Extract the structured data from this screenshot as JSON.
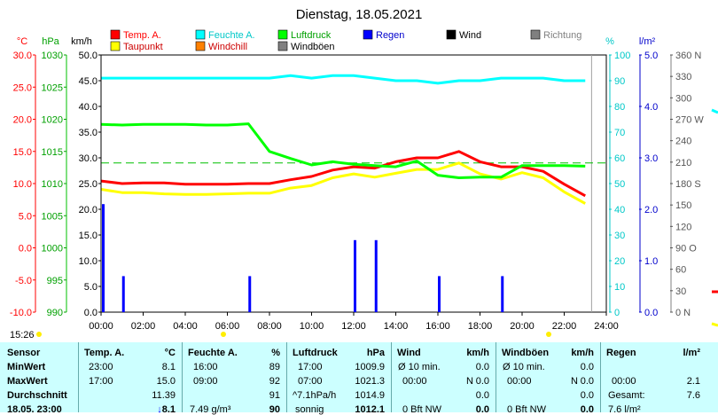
{
  "chart_data": {
    "type": "line",
    "title": "Dienstag, 18.05.2021",
    "x_ticks": [
      "00:00",
      "02:00",
      "04:00",
      "06:00",
      "08:00",
      "10:00",
      "12:00",
      "14:00",
      "16:00",
      "18:00",
      "20:00",
      "22:00",
      "24:00"
    ],
    "axes": {
      "temp": {
        "unit": "°C",
        "ticks": [
          "30.0",
          "25.0",
          "20.0",
          "15.0",
          "10.0",
          "5.0",
          "0.0",
          "-5.0",
          "-10.0"
        ],
        "range": [
          -10,
          30
        ]
      },
      "pressure": {
        "unit": "hPa",
        "ticks": [
          "1030",
          "1025",
          "1020",
          "1015",
          "1010",
          "1005",
          "1000",
          "995",
          "990"
        ],
        "range": [
          990,
          1030
        ]
      },
      "wind": {
        "unit": "km/h",
        "ticks": [
          "50.0",
          "45.0",
          "40.0",
          "35.0",
          "30.0",
          "25.0",
          "20.0",
          "15.0",
          "10.0",
          "5.0",
          "0.0"
        ],
        "range": [
          0,
          50
        ]
      },
      "humidity": {
        "unit": "%",
        "ticks": [
          "100",
          "90",
          "80",
          "70",
          "60",
          "50",
          "40",
          "30",
          "20",
          "10",
          "0"
        ],
        "range": [
          0,
          100
        ]
      },
      "rain": {
        "unit": "l/m²",
        "ticks": [
          "5.0",
          "4.0",
          "3.0",
          "2.0",
          "1.0",
          "0.0"
        ],
        "range": [
          0,
          5
        ]
      },
      "direction": {
        "ticks": [
          "360 N",
          "330",
          "300",
          "270 W",
          "240",
          "210",
          "180 S",
          "150",
          "120",
          "90 O",
          "60",
          "30",
          "0 N"
        ],
        "range": [
          0,
          360
        ]
      }
    },
    "legend": [
      {
        "name": "Temp. A.",
        "color": "#ff0000",
        "label_color": "#ff0000"
      },
      {
        "name": "Feuchte A.",
        "color": "#00ffff",
        "label_color": "#00c8c8"
      },
      {
        "name": "Luftdruck",
        "color": "#00ff00",
        "label_color": "#00a000"
      },
      {
        "name": "Regen",
        "color": "#0000ff",
        "label_color": "#0000cc"
      },
      {
        "name": "Wind",
        "color": "#000000",
        "label_color": "#000000"
      },
      {
        "name": "Richtung",
        "color": "#808080",
        "label_color": "#808080"
      },
      {
        "name": "Taupunkt",
        "color": "#ffff00",
        "label_color": "#cc0000"
      },
      {
        "name": "Windchill",
        "color": "#ff8000",
        "label_color": "#cc0000"
      },
      {
        "name": "Windböen",
        "color": "#808080",
        "label_color": "#000000"
      }
    ],
    "series": [
      {
        "name": "Temp. A.",
        "axis": "temp",
        "color": "#ff0000",
        "x": [
          0,
          1,
          2,
          3,
          4,
          5,
          6,
          7,
          8,
          9,
          10,
          11,
          12,
          13,
          14,
          15,
          16,
          17,
          18,
          19,
          20,
          21,
          22,
          23
        ],
        "values": [
          10.4,
          10.0,
          10.1,
          10.1,
          9.9,
          9.9,
          9.9,
          10.0,
          10.0,
          10.6,
          11.1,
          12.1,
          12.6,
          12.4,
          13.4,
          14.0,
          14.0,
          15.0,
          13.4,
          12.6,
          12.6,
          11.9,
          9.9,
          8.1
        ]
      },
      {
        "name": "Taupunkt",
        "axis": "temp",
        "color": "#ffff00",
        "x": [
          0,
          1,
          2,
          3,
          4,
          5,
          6,
          7,
          8,
          9,
          10,
          11,
          12,
          13,
          14,
          15,
          16,
          17,
          18,
          19,
          20,
          21,
          22,
          23
        ],
        "values": [
          9.1,
          8.6,
          8.6,
          8.4,
          8.3,
          8.3,
          8.4,
          8.5,
          8.5,
          9.3,
          9.7,
          10.9,
          11.5,
          11.0,
          11.6,
          12.2,
          12.2,
          13.2,
          11.5,
          10.7,
          11.7,
          10.9,
          8.7,
          6.9
        ]
      },
      {
        "name": "Feuchte A.",
        "axis": "humidity",
        "color": "#00ffff",
        "x": [
          0,
          1,
          2,
          3,
          4,
          5,
          6,
          7,
          8,
          9,
          10,
          11,
          12,
          13,
          14,
          15,
          16,
          17,
          18,
          19,
          20,
          21,
          22,
          23
        ],
        "values": [
          91,
          91,
          91,
          91,
          91,
          91,
          91,
          91,
          91,
          92,
          91,
          92,
          92,
          91,
          90,
          90,
          89,
          90,
          90,
          91,
          91,
          91,
          90,
          90
        ]
      },
      {
        "name": "Luftdruck",
        "axis": "pressure",
        "color": "#00ff00",
        "x": [
          0,
          1,
          2,
          3,
          4,
          5,
          6,
          7,
          8,
          9,
          10,
          11,
          12,
          13,
          14,
          15,
          16,
          17,
          18,
          19,
          20,
          21,
          22,
          23
        ],
        "values": [
          1019.2,
          1019.1,
          1019.2,
          1019.2,
          1019.2,
          1019.1,
          1019.1,
          1019.3,
          1015.0,
          1013.9,
          1012.9,
          1013.4,
          1013.0,
          1012.8,
          1012.6,
          1013.5,
          1011.3,
          1010.9,
          1011.0,
          1011.0,
          1012.8,
          1012.8,
          1012.8,
          1012.7
        ]
      },
      {
        "name": "Regen",
        "axis": "rain",
        "color": "#0000ff",
        "type": "bar",
        "x": [
          0,
          1,
          7,
          12,
          13,
          16,
          19
        ],
        "values": [
          2.1,
          0.7,
          0.7,
          1.4,
          1.4,
          0.7,
          0.7
        ]
      }
    ],
    "reference_line": {
      "axis": "humidity",
      "value": 58,
      "color": "#00c000"
    },
    "grid": false
  },
  "footer": {
    "time": "15:26"
  },
  "stats": {
    "sensor_hdr": "Sensor",
    "row_labels": [
      "MinWert",
      "MaxWert",
      "Durchschnitt",
      "18.05. 23:00"
    ],
    "temp": {
      "hdr": "Temp. A.",
      "unit": "°C",
      "min_time": "23:00",
      "min": "8.1",
      "max_time": "17:00",
      "max": "15.0",
      "avg": "11.39",
      "now": "8.1"
    },
    "humidity": {
      "hdr": "Feuchte A.",
      "unit": "%",
      "min_time": "16:00",
      "min": "89",
      "max_time": "09:00",
      "max": "92",
      "avg": "91",
      "now_sub": "7.49 g/m³",
      "now": "90"
    },
    "pressure": {
      "hdr": "Luftdruck",
      "unit": "hPa",
      "min_time": "17:00",
      "min": "1009.9",
      "max_time": "07:00",
      "max": "1021.3",
      "avg_sub": "^7.1hPa/h",
      "avg": "1014.9",
      "now_sub": "sonnig",
      "now": "1012.1"
    },
    "wind": {
      "hdr": "Wind",
      "unit": "km/h",
      "min_label": "Ø 10 min.",
      "min": "0.0",
      "max_time": "00:00",
      "max_dir": "N",
      "max": "0.0",
      "avg": "0.0",
      "now_sub": "0 Bft NW",
      "now": "0.0"
    },
    "gust": {
      "hdr": "Windböen",
      "unit": "km/h",
      "min_label": "Ø 10 min.",
      "min": "0.0",
      "max_time": "00:00",
      "max_dir": "N",
      "max": "0.0",
      "avg": "0.0",
      "now_sub": "0 Bft NW",
      "now": "0.0"
    },
    "rain": {
      "hdr": "Regen",
      "unit": "l/m²",
      "max_time": "00:00",
      "max": "2.1",
      "total_label": "Gesamt:",
      "total": "7.6",
      "now": "7.6 l/m²"
    }
  }
}
